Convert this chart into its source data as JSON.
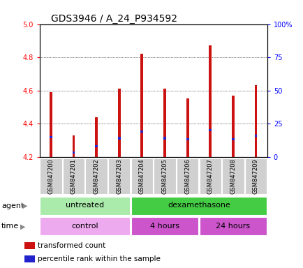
{
  "title": "GDS3946 / A_24_P934592",
  "samples": [
    "GSM847200",
    "GSM847201",
    "GSM847202",
    "GSM847203",
    "GSM847204",
    "GSM847205",
    "GSM847206",
    "GSM847207",
    "GSM847208",
    "GSM847209"
  ],
  "transformed_counts": [
    4.59,
    4.33,
    4.44,
    4.61,
    4.82,
    4.61,
    4.55,
    4.87,
    4.57,
    4.63
  ],
  "percentile_ranks": [
    15,
    3,
    8,
    14,
    19,
    14,
    13,
    20,
    13,
    16
  ],
  "baseline": 4.2,
  "ylim_left": [
    4.2,
    5.0
  ],
  "ylim_right": [
    0,
    100
  ],
  "yticks_left": [
    4.2,
    4.4,
    4.6,
    4.8,
    5.0
  ],
  "yticks_right": [
    0,
    25,
    50,
    75,
    100
  ],
  "ytick_labels_right": [
    "0",
    "25",
    "50",
    "75",
    "100%"
  ],
  "bar_color": "#cc1111",
  "blue_color": "#2222cc",
  "bar_width": 0.12,
  "agent_groups": [
    {
      "label": "untreated",
      "start": 0,
      "end": 3,
      "color": "#aaeaaa"
    },
    {
      "label": "dexamethasone",
      "start": 4,
      "end": 9,
      "color": "#44cc44"
    }
  ],
  "time_groups": [
    {
      "label": "control",
      "start": 0,
      "end": 3,
      "color": "#eeaaee"
    },
    {
      "label": "4 hours",
      "start": 4,
      "end": 6,
      "color": "#cc55cc"
    },
    {
      "label": "24 hours",
      "start": 7,
      "end": 9,
      "color": "#cc55cc"
    }
  ],
  "legend_items": [
    {
      "label": "transformed count",
      "color": "#cc1111"
    },
    {
      "label": "percentile rank within the sample",
      "color": "#2222cc"
    }
  ],
  "title_fontsize": 10,
  "tick_fontsize": 7,
  "label_fontsize": 8,
  "sample_fontsize": 6
}
